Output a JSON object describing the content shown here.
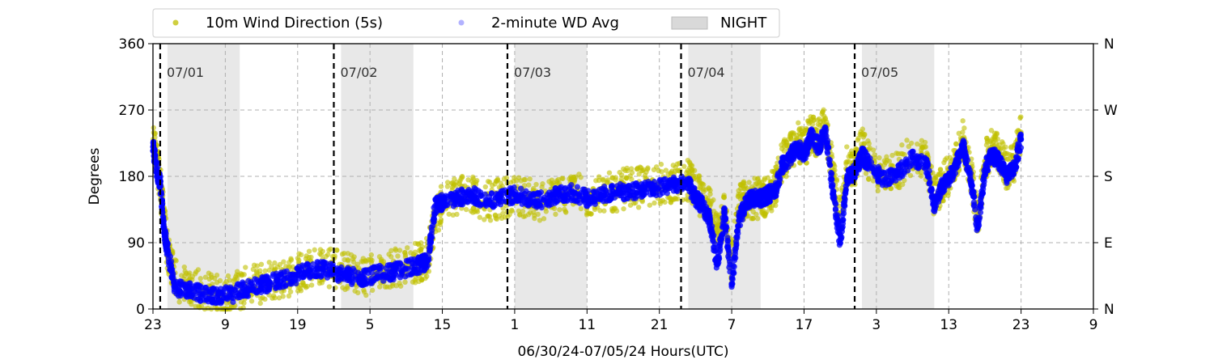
{
  "chart_data": {
    "type": "scatter",
    "xlabel": "06/30/24-07/05/24  Hours(UTC)",
    "ylabel": "Degrees",
    "xlim": [
      23,
      153
    ],
    "ylim": [
      0,
      360
    ],
    "x_unit": "hours",
    "x_ticks": [
      {
        "value": 23,
        "label": "23"
      },
      {
        "value": 33,
        "label": "9"
      },
      {
        "value": 43,
        "label": "19"
      },
      {
        "value": 53,
        "label": "5"
      },
      {
        "value": 63,
        "label": "15"
      },
      {
        "value": 73,
        "label": "1"
      },
      {
        "value": 83,
        "label": "11"
      },
      {
        "value": 93,
        "label": "21"
      },
      {
        "value": 103,
        "label": "7"
      },
      {
        "value": 113,
        "label": "17"
      },
      {
        "value": 123,
        "label": "3"
      },
      {
        "value": 133,
        "label": "13"
      },
      {
        "value": 143,
        "label": "23"
      },
      {
        "value": 153,
        "label": "9"
      }
    ],
    "y_ticks": [
      0,
      90,
      180,
      270,
      360
    ],
    "y2_ticks": [
      {
        "value": 0,
        "label": "N"
      },
      {
        "value": 90,
        "label": "E"
      },
      {
        "value": 180,
        "label": "S"
      },
      {
        "value": 270,
        "label": "W"
      },
      {
        "value": 360,
        "label": "N"
      }
    ],
    "grid": true,
    "legend_position": "top (above plot)",
    "legend": [
      {
        "key": "wd5s",
        "label": "10m Wind Direction (5s)",
        "color": "#bfbf00",
        "kind": "marker"
      },
      {
        "key": "wd2m",
        "label": "2-minute WD Avg",
        "color": "#0000ff",
        "kind": "marker"
      },
      {
        "key": "night",
        "label": "NIGHT",
        "color": "#d9d9d9",
        "kind": "patch"
      }
    ],
    "day_markers": [
      {
        "x": 24,
        "label": "07/01"
      },
      {
        "x": 48,
        "label": "07/02"
      },
      {
        "x": 72,
        "label": "07/03"
      },
      {
        "x": 96,
        "label": "07/04"
      },
      {
        "x": 120,
        "label": "07/05"
      }
    ],
    "night_spans": [
      [
        25,
        35
      ],
      [
        49,
        59
      ],
      [
        73,
        83
      ],
      [
        97,
        107
      ],
      [
        121,
        131
      ]
    ],
    "series": [
      {
        "name": "10m Wind Direction (5s)",
        "color": "#bfbf00",
        "x": [
          23,
          23.5,
          24,
          24.5,
          25,
          26,
          28,
          30,
          32,
          34,
          36,
          38,
          40,
          42,
          44,
          46,
          48,
          50,
          52,
          54,
          56,
          58,
          60,
          61,
          62,
          63,
          65,
          67,
          69,
          71,
          73,
          75,
          77,
          79,
          81,
          83,
          85,
          87,
          89,
          91,
          93,
          95,
          97,
          98,
          99,
          100,
          101,
          102,
          103,
          104,
          105,
          106,
          107,
          108,
          109,
          110,
          111,
          112,
          113,
          114,
          115,
          116,
          117,
          118,
          119,
          120,
          121,
          122,
          124,
          126,
          128,
          130,
          131,
          132,
          133,
          134,
          135,
          136,
          137,
          138,
          139,
          140,
          141,
          142,
          143
        ],
        "y": [
          230,
          200,
          175,
          120,
          80,
          40,
          30,
          25,
          20,
          22,
          30,
          35,
          40,
          45,
          55,
          60,
          55,
          50,
          45,
          50,
          55,
          60,
          65,
          70,
          120,
          150,
          155,
          160,
          145,
          150,
          155,
          150,
          145,
          155,
          160,
          150,
          155,
          160,
          165,
          165,
          170,
          170,
          175,
          160,
          150,
          140,
          100,
          130,
          60,
          140,
          150,
          150,
          150,
          155,
          165,
          200,
          210,
          230,
          215,
          240,
          230,
          250,
          180,
          120,
          200,
          190,
          220,
          200,
          180,
          190,
          210,
          200,
          150,
          170,
          180,
          200,
          230,
          190,
          120,
          200,
          220,
          210,
          190,
          200,
          240
        ]
      },
      {
        "name": "2-minute WD Avg",
        "color": "#0000ff",
        "x": [
          23,
          23.5,
          24,
          24.5,
          25,
          26,
          28,
          30,
          32,
          34,
          36,
          38,
          40,
          42,
          44,
          46,
          48,
          50,
          52,
          54,
          56,
          58,
          60,
          61,
          62,
          63,
          65,
          67,
          69,
          71,
          73,
          75,
          77,
          79,
          81,
          83,
          85,
          87,
          89,
          91,
          93,
          95,
          97,
          98,
          99,
          100,
          101,
          102,
          103,
          104,
          105,
          106,
          107,
          108,
          109,
          110,
          111,
          112,
          113,
          114,
          115,
          116,
          117,
          118,
          119,
          120,
          121,
          122,
          124,
          126,
          128,
          130,
          131,
          132,
          133,
          134,
          135,
          136,
          137,
          138,
          139,
          140,
          141,
          142,
          143
        ],
        "y": [
          220,
          190,
          170,
          110,
          80,
          30,
          25,
          20,
          18,
          20,
          28,
          32,
          38,
          42,
          50,
          55,
          50,
          45,
          42,
          48,
          50,
          55,
          60,
          65,
          140,
          145,
          150,
          155,
          148,
          150,
          155,
          150,
          148,
          155,
          158,
          150,
          155,
          158,
          160,
          162,
          165,
          168,
          170,
          150,
          140,
          120,
          60,
          130,
          30,
          120,
          145,
          150,
          150,
          155,
          160,
          195,
          205,
          220,
          210,
          235,
          220,
          240,
          160,
          90,
          180,
          185,
          210,
          195,
          175,
          185,
          205,
          195,
          140,
          165,
          175,
          195,
          220,
          180,
          110,
          190,
          210,
          200,
          180,
          190,
          230
        ]
      }
    ]
  }
}
